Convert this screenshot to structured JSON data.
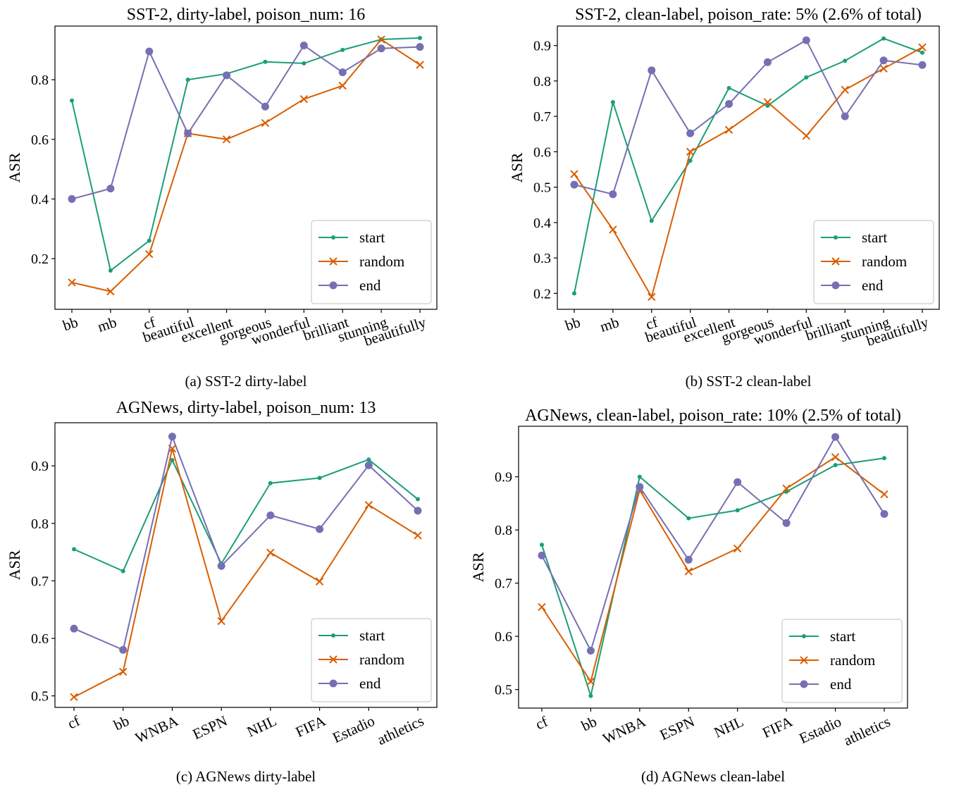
{
  "colors": {
    "start": "#1b9e77",
    "random": "#d95f02",
    "end": "#7570b3"
  },
  "chart_data": [
    {
      "type": "line",
      "title": "SST-2, dirty-label, poison_num: 16",
      "caption": "(a) SST-2 dirty-label",
      "ylabel": "ASR",
      "xlabel": "",
      "categories": [
        "bb",
        "mb",
        "cf",
        "beautiful",
        "excellent",
        "gorgeous",
        "wonderful",
        "brilliant",
        "stunning",
        "beautifully"
      ],
      "ylim": [
        0.03,
        0.98
      ],
      "yticks": [
        0.2,
        0.4,
        0.6,
        0.8
      ],
      "ytick_labels": [
        "0.2",
        "0.4",
        "0.6",
        "0.8"
      ],
      "legend": "lower-right",
      "grid": false,
      "series": [
        {
          "name": "start",
          "marker": "dot",
          "values": [
            0.73,
            0.16,
            0.26,
            0.8,
            0.82,
            0.86,
            0.855,
            0.9,
            0.935,
            0.94
          ]
        },
        {
          "name": "random",
          "marker": "x",
          "values": [
            0.12,
            0.09,
            0.215,
            0.62,
            0.6,
            0.655,
            0.735,
            0.78,
            0.935,
            0.85
          ]
        },
        {
          "name": "end",
          "marker": "circle",
          "values": [
            0.4,
            0.435,
            0.895,
            0.62,
            0.815,
            0.71,
            0.915,
            0.825,
            0.905,
            0.91
          ]
        }
      ]
    },
    {
      "type": "line",
      "title": "SST-2, clean-label, poison_rate: 5% (2.6% of total)",
      "caption": "(b) SST-2 clean-label",
      "ylabel": "ASR",
      "xlabel": "",
      "categories": [
        "bb",
        "mb",
        "cf",
        "beautiful",
        "excellent",
        "gorgeous",
        "wonderful",
        "brilliant",
        "stunning",
        "beautifully"
      ],
      "ylim": [
        0.155,
        0.955
      ],
      "yticks": [
        0.2,
        0.3,
        0.4,
        0.5,
        0.6,
        0.7,
        0.8,
        0.9
      ],
      "ytick_labels": [
        "0.2",
        "0.3",
        "0.4",
        "0.5",
        "0.6",
        "0.7",
        "0.8",
        "0.9"
      ],
      "legend": "lower-right",
      "grid": false,
      "series": [
        {
          "name": "start",
          "marker": "dot",
          "values": [
            0.2,
            0.74,
            0.405,
            0.575,
            0.78,
            0.73,
            0.81,
            0.857,
            0.92,
            0.88
          ]
        },
        {
          "name": "random",
          "marker": "x",
          "values": [
            0.537,
            0.38,
            0.19,
            0.6,
            0.662,
            0.74,
            0.645,
            0.775,
            0.835,
            0.895
          ]
        },
        {
          "name": "end",
          "marker": "circle",
          "values": [
            0.507,
            0.48,
            0.83,
            0.652,
            0.735,
            0.853,
            0.915,
            0.7,
            0.858,
            0.845
          ]
        }
      ]
    },
    {
      "type": "line",
      "title": "AGNews, dirty-label, poison_num: 13",
      "caption": "(c) AGNews dirty-label",
      "ylabel": "ASR",
      "xlabel": "",
      "categories": [
        "cf",
        "bb",
        "WNBA",
        "ESPN",
        "NHL",
        "FIFA",
        "Estadio",
        "athletics"
      ],
      "ylim": [
        0.48,
        0.975
      ],
      "yticks": [
        0.5,
        0.6,
        0.7,
        0.8,
        0.9
      ],
      "ytick_labels": [
        "0.5",
        "0.6",
        "0.7",
        "0.8",
        "0.9"
      ],
      "legend": "lower-right",
      "grid": false,
      "series": [
        {
          "name": "start",
          "marker": "dot",
          "values": [
            0.755,
            0.717,
            0.91,
            0.73,
            0.87,
            0.879,
            0.911,
            0.842
          ]
        },
        {
          "name": "random",
          "marker": "x",
          "values": [
            0.498,
            0.542,
            0.93,
            0.63,
            0.749,
            0.699,
            0.832,
            0.779
          ]
        },
        {
          "name": "end",
          "marker": "circle",
          "values": [
            0.617,
            0.58,
            0.951,
            0.726,
            0.814,
            0.79,
            0.901,
            0.822
          ]
        }
      ]
    },
    {
      "type": "line",
      "title": "AGNews, clean-label, poison_rate: 10% (2.5% of total)",
      "caption": "(d) AGNews clean-label",
      "ylabel": "ASR",
      "xlabel": "",
      "categories": [
        "cf",
        "bb",
        "WNBA",
        "ESPN",
        "NHL",
        "FIFA",
        "Estadio",
        "athletics"
      ],
      "ylim": [
        0.465,
        0.995
      ],
      "yticks": [
        0.5,
        0.6,
        0.7,
        0.8,
        0.9
      ],
      "ytick_labels": [
        "0.5",
        "0.6",
        "0.7",
        "0.8",
        "0.9"
      ],
      "legend": "lower-right",
      "grid": false,
      "series": [
        {
          "name": "start",
          "marker": "dot",
          "values": [
            0.772,
            0.488,
            0.9,
            0.822,
            0.837,
            0.872,
            0.922,
            0.935
          ]
        },
        {
          "name": "random",
          "marker": "x",
          "values": [
            0.655,
            0.515,
            0.875,
            0.722,
            0.765,
            0.878,
            0.937,
            0.867
          ]
        },
        {
          "name": "end",
          "marker": "circle",
          "values": [
            0.752,
            0.573,
            0.881,
            0.744,
            0.89,
            0.813,
            0.975,
            0.83
          ]
        }
      ]
    }
  ]
}
